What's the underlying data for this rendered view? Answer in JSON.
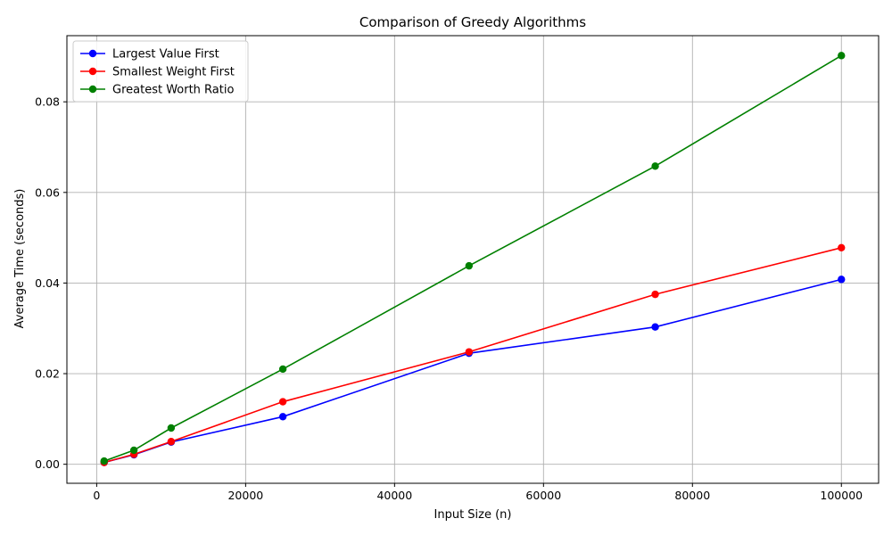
{
  "chart_data": {
    "type": "line",
    "title": "Comparison of Greedy Algorithms",
    "xlabel": "Input Size (n)",
    "ylabel": "Average Time (seconds)",
    "x": [
      1000,
      5000,
      10000,
      25000,
      50000,
      75000,
      100000
    ],
    "xlim": [
      -4000,
      105000
    ],
    "ylim": [
      -0.0042,
      0.0946
    ],
    "xticks": [
      0,
      20000,
      40000,
      60000,
      80000,
      100000
    ],
    "yticks": [
      0.0,
      0.02,
      0.04,
      0.06,
      0.08
    ],
    "xtick_labels": [
      "0",
      "20000",
      "40000",
      "60000",
      "80000",
      "100000"
    ],
    "ytick_labels": [
      "0.00",
      "0.02",
      "0.04",
      "0.06",
      "0.08"
    ],
    "grid": true,
    "legend_position": "top-left",
    "series": [
      {
        "name": "Largest Value First",
        "color": "#0000ff",
        "values": [
          0.0004,
          0.0021,
          0.0049,
          0.0105,
          0.0245,
          0.0303,
          0.0408
        ]
      },
      {
        "name": "Smallest Weight First",
        "color": "#ff0000",
        "values": [
          0.0004,
          0.0022,
          0.005,
          0.0138,
          0.0248,
          0.0375,
          0.0478
        ]
      },
      {
        "name": "Greatest Worth Ratio",
        "color": "#008000",
        "values": [
          0.0007,
          0.0031,
          0.008,
          0.021,
          0.0438,
          0.0658,
          0.0902
        ]
      }
    ]
  }
}
